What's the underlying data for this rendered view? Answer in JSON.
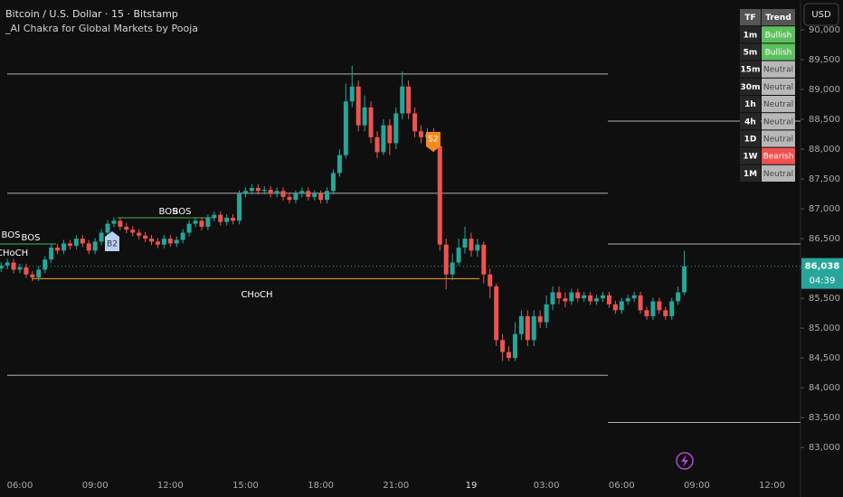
{
  "chart_data": {
    "type": "candlestick",
    "title": "Bitcoin / U.S. Dollar · 15 · Bitstamp",
    "subtitle": "_AI Chakra for Global Markets by Pooja",
    "currency": "USD",
    "up_color": "#26a69a",
    "down_color": "#ef5350",
    "x": [
      "05:15",
      "05:30",
      "05:45",
      "06:00",
      "06:15",
      "06:30",
      "06:45",
      "07:00",
      "07:15",
      "07:30",
      "07:45",
      "08:00",
      "08:15",
      "08:30",
      "08:45",
      "09:00",
      "09:15",
      "09:30",
      "09:45",
      "10:00",
      "10:15",
      "10:30",
      "10:45",
      "11:00",
      "11:15",
      "11:30",
      "11:45",
      "12:00",
      "12:15",
      "12:30",
      "12:45",
      "13:00",
      "13:15",
      "13:30",
      "13:45",
      "14:00",
      "14:15",
      "14:30",
      "14:45",
      "15:00",
      "15:15",
      "15:30",
      "15:45",
      "16:00",
      "16:15",
      "16:30",
      "16:45",
      "17:00",
      "17:15",
      "17:30",
      "17:45",
      "18:00",
      "18:15",
      "18:30",
      "18:45",
      "19:00",
      "19:15",
      "19:30",
      "19:45",
      "20:00",
      "20:15",
      "20:30",
      "20:45",
      "21:00",
      "21:15",
      "21:30",
      "21:45",
      "22:00",
      "22:15",
      "22:30",
      "22:45",
      "23:00",
      "23:15",
      "23:30",
      "23:45",
      "00:00",
      "00:15",
      "00:30",
      "00:45",
      "01:00",
      "01:15",
      "01:30",
      "01:45",
      "02:00",
      "02:15",
      "02:30",
      "02:45",
      "03:00",
      "03:15",
      "03:30",
      "03:45",
      "04:00",
      "04:15",
      "04:30",
      "04:45",
      "05:00",
      "05:15",
      "05:30",
      "05:45",
      "06:00",
      "06:15",
      "06:30",
      "06:45",
      "07:00",
      "07:15",
      "07:30",
      "07:45",
      "08:00",
      "08:15",
      "08:30"
    ],
    "open": [
      86000,
      86050,
      86100,
      85980,
      86020,
      85900,
      85850,
      85980,
      86150,
      86350,
      86300,
      86420,
      86380,
      86500,
      86420,
      86300,
      86450,
      86600,
      86750,
      86800,
      86700,
      86650,
      86600,
      86550,
      86500,
      86450,
      86400,
      86500,
      86420,
      86480,
      86600,
      86750,
      86800,
      86700,
      86850,
      86900,
      86780,
      86850,
      86800,
      87250,
      87300,
      87350,
      87300,
      87320,
      87250,
      87300,
      87200,
      87150,
      87250,
      87300,
      87200,
      87250,
      87150,
      87300,
      87600,
      87900,
      88800,
      89050,
      88400,
      88700,
      88200,
      87950,
      88400,
      88100,
      88600,
      89050,
      88600,
      88300,
      88200,
      88250,
      88050,
      86400,
      85900,
      86100,
      86350,
      86500,
      86300,
      86400,
      85900,
      85700,
      84800,
      84600,
      84500,
      84900,
      85200,
      84800,
      85200,
      85100,
      85400,
      85600,
      85500,
      85450,
      85600,
      85500,
      85550,
      85450,
      85500,
      85550,
      85400,
      85300,
      85450,
      85500,
      85550,
      85300,
      85200,
      85450,
      85300,
      85200,
      85450,
      85600
    ],
    "high": [
      86110,
      86160,
      86160,
      86080,
      86080,
      85960,
      86040,
      86210,
      86410,
      86410,
      86480,
      86480,
      86560,
      86560,
      86480,
      86510,
      86660,
      86810,
      86860,
      86860,
      86760,
      86710,
      86660,
      86610,
      86560,
      86510,
      86560,
      86560,
      86540,
      86660,
      86810,
      86860,
      86860,
      86910,
      86960,
      86960,
      86910,
      86910,
      87310,
      87360,
      87410,
      87410,
      87380,
      87380,
      87360,
      87360,
      87260,
      87310,
      87360,
      87360,
      87310,
      87310,
      87360,
      87660,
      88000,
      89100,
      89400,
      89150,
      88900,
      88800,
      88300,
      88500,
      88500,
      88700,
      89300,
      89150,
      88700,
      88400,
      88350,
      88350,
      88150,
      86500,
      86250,
      86500,
      86700,
      86600,
      86500,
      86450,
      86000,
      85750,
      84900,
      84700,
      85100,
      85300,
      85300,
      85300,
      85300,
      85550,
      85700,
      85700,
      85600,
      85660,
      85660,
      85610,
      85610,
      85560,
      85610,
      85610,
      85460,
      85510,
      85560,
      85610,
      85610,
      85360,
      85510,
      85510,
      85360,
      85510,
      85700,
      86300
    ],
    "low": [
      85940,
      85990,
      85920,
      85920,
      85840,
      85790,
      85790,
      85920,
      86090,
      86240,
      86240,
      86320,
      86320,
      86360,
      86240,
      86240,
      86390,
      86540,
      86690,
      86640,
      86590,
      86540,
      86490,
      86440,
      86390,
      86340,
      86340,
      86360,
      86360,
      86420,
      86540,
      86690,
      86640,
      86640,
      86790,
      86720,
      86720,
      86740,
      86740,
      87190,
      87240,
      87240,
      87240,
      87190,
      87190,
      87140,
      87090,
      87090,
      87190,
      87140,
      87140,
      87090,
      87090,
      87240,
      87540,
      87840,
      88700,
      88300,
      88300,
      88100,
      87850,
      87900,
      87900,
      88000,
      88500,
      88500,
      88200,
      88100,
      88100,
      87950,
      86300,
      85650,
      85800,
      86050,
      86250,
      86200,
      86200,
      85750,
      85500,
      84700,
      84450,
      84450,
      84450,
      84800,
      84700,
      84700,
      85000,
      85000,
      85300,
      85400,
      85350,
      85390,
      85440,
      85440,
      85390,
      85390,
      85440,
      85340,
      85240,
      85240,
      85390,
      85440,
      85240,
      85140,
      85140,
      85240,
      85140,
      85140,
      85390,
      85550
    ],
    "close": [
      86050,
      86100,
      85980,
      86020,
      85900,
      85850,
      85980,
      86150,
      86350,
      86300,
      86420,
      86380,
      86500,
      86420,
      86300,
      86450,
      86600,
      86750,
      86800,
      86700,
      86650,
      86600,
      86550,
      86500,
      86450,
      86400,
      86500,
      86420,
      86480,
      86600,
      86750,
      86800,
      86700,
      86850,
      86900,
      86780,
      86850,
      86800,
      87250,
      87300,
      87350,
      87300,
      87320,
      87250,
      87300,
      87200,
      87150,
      87250,
      87300,
      87200,
      87250,
      87150,
      87300,
      87600,
      87900,
      88800,
      89050,
      88400,
      88700,
      88200,
      87950,
      88400,
      88100,
      88600,
      89050,
      88600,
      88300,
      88200,
      88250,
      88050,
      86400,
      85900,
      86100,
      86350,
      86500,
      86300,
      86400,
      85900,
      85700,
      84800,
      84600,
      84500,
      84900,
      85200,
      84800,
      85200,
      85100,
      85400,
      85600,
      85500,
      85450,
      85600,
      85500,
      85550,
      85450,
      85500,
      85550,
      85400,
      85300,
      85450,
      85500,
      85550,
      85300,
      85200,
      85450,
      85300,
      85200,
      85450,
      85600,
      86038
    ],
    "ylim": [
      82700,
      90500
    ],
    "yticks": [
      {
        "value": 83000,
        "label": "83,000"
      },
      {
        "value": 83500,
        "label": "83,500"
      },
      {
        "value": 84000,
        "label": "84,000"
      },
      {
        "value": 84500,
        "label": "84,500"
      },
      {
        "value": 85000,
        "label": "85,000"
      },
      {
        "value": 85500,
        "label": "85,500"
      },
      {
        "value": 86000,
        "label": "86,000"
      },
      {
        "value": 86500,
        "label": "86,500"
      },
      {
        "value": 87000,
        "label": "87,000"
      },
      {
        "value": 87500,
        "label": "87,500"
      },
      {
        "value": 88000,
        "label": "88,000"
      },
      {
        "value": 88500,
        "label": "88,500"
      },
      {
        "value": 89000,
        "label": "89,000"
      },
      {
        "value": 89500,
        "label": "89,500"
      },
      {
        "value": 90000,
        "label": "90,000"
      }
    ],
    "xticks": [
      "06:00",
      "09:00",
      "12:00",
      "15:00",
      "18:00",
      "21:00",
      "19",
      "03:00",
      "06:00",
      "09:00",
      "12:00"
    ],
    "levels": [
      {
        "value": 89260,
        "color": "#b0b0b0"
      },
      {
        "value": 87260,
        "color": "#b0b0b0"
      },
      {
        "value": 84210,
        "color": "#b0b0b0"
      },
      {
        "value": 88470,
        "color": "#b0b0b0"
      },
      {
        "value": 86410,
        "color": "#b0b0b0"
      },
      {
        "value": 83420,
        "color": "#b0b0b0"
      },
      {
        "value": 86410,
        "color": "#4caf50"
      },
      {
        "value": 86850,
        "color": "#4caf50"
      },
      {
        "value": 85830,
        "color": "#f5a623"
      }
    ],
    "annotations": [
      "BOS",
      "BOS",
      "BOS",
      "BOS",
      "CHoCH",
      "CHoCH",
      "B2",
      "S2"
    ],
    "last_price": {
      "value": 86038,
      "label": "86,038"
    },
    "countdown": "04:39"
  },
  "trend_table": {
    "header": [
      "TF",
      "Trend"
    ],
    "rows": [
      [
        "1m",
        "Bullish"
      ],
      [
        "5m",
        "Bullish"
      ],
      [
        "15m",
        "Neutral"
      ],
      [
        "30m",
        "Neutral"
      ],
      [
        "1h",
        "Neutral"
      ],
      [
        "4h",
        "Neutral"
      ],
      [
        "1D",
        "Neutral"
      ],
      [
        "1W",
        "Bearish"
      ],
      [
        "1M",
        "Neutral"
      ]
    ],
    "colors": {
      "Bullish": "#5cc05c",
      "Neutral": "#b8b8b8",
      "Bearish": "#f0504f"
    }
  }
}
